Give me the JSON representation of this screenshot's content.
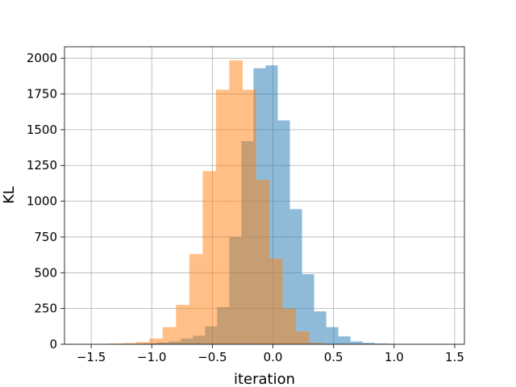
{
  "chart_data": {
    "type": "histogram",
    "title": "",
    "xlabel": "iteration",
    "ylabel": "KL",
    "xlim": [
      -1.72,
      1.58
    ],
    "ylim": [
      0,
      2080
    ],
    "grid": true,
    "x_ticks": [
      -1.5,
      -1.0,
      -0.5,
      0.0,
      0.5,
      1.0,
      1.5
    ],
    "x_tick_labels": [
      "−1.5",
      "−1.0",
      "−0.5",
      "0.0",
      "0.5",
      "1.0",
      "1.5"
    ],
    "y_ticks": [
      0,
      250,
      500,
      750,
      1000,
      1250,
      1500,
      1750,
      2000
    ],
    "y_tick_labels": [
      "0",
      "250",
      "500",
      "750",
      "1000",
      "1250",
      "1500",
      "1750",
      "2000"
    ],
    "series": [
      {
        "color": "#1f77b4",
        "opacity": 0.5,
        "bin_edges": [
          -1.26,
          -1.16,
          -1.06,
          -0.96,
          -0.86,
          -0.76,
          -0.66,
          -0.56,
          -0.46,
          -0.36,
          -0.26,
          -0.16,
          -0.06,
          0.04,
          0.14,
          0.24,
          0.34,
          0.44,
          0.54,
          0.64,
          0.74,
          0.84,
          0.94,
          1.04,
          1.14
        ],
        "counts": [
          2,
          3,
          6,
          12,
          20,
          40,
          60,
          125,
          260,
          750,
          1420,
          1930,
          1950,
          1565,
          945,
          490,
          230,
          120,
          55,
          20,
          10,
          5,
          2,
          1
        ]
      },
      {
        "color": "#ff7f0e",
        "opacity": 0.5,
        "bin_edges": [
          -1.35,
          -1.24,
          -1.13,
          -1.02,
          -0.91,
          -0.8,
          -0.69,
          -0.58,
          -0.47,
          -0.36,
          -0.25,
          -0.14,
          -0.03,
          0.08,
          0.19,
          0.3,
          0.41
        ],
        "counts": [
          5,
          8,
          15,
          40,
          120,
          275,
          630,
          1210,
          1780,
          1985,
          1780,
          1150,
          600,
          250,
          90,
          10
        ]
      }
    ]
  }
}
